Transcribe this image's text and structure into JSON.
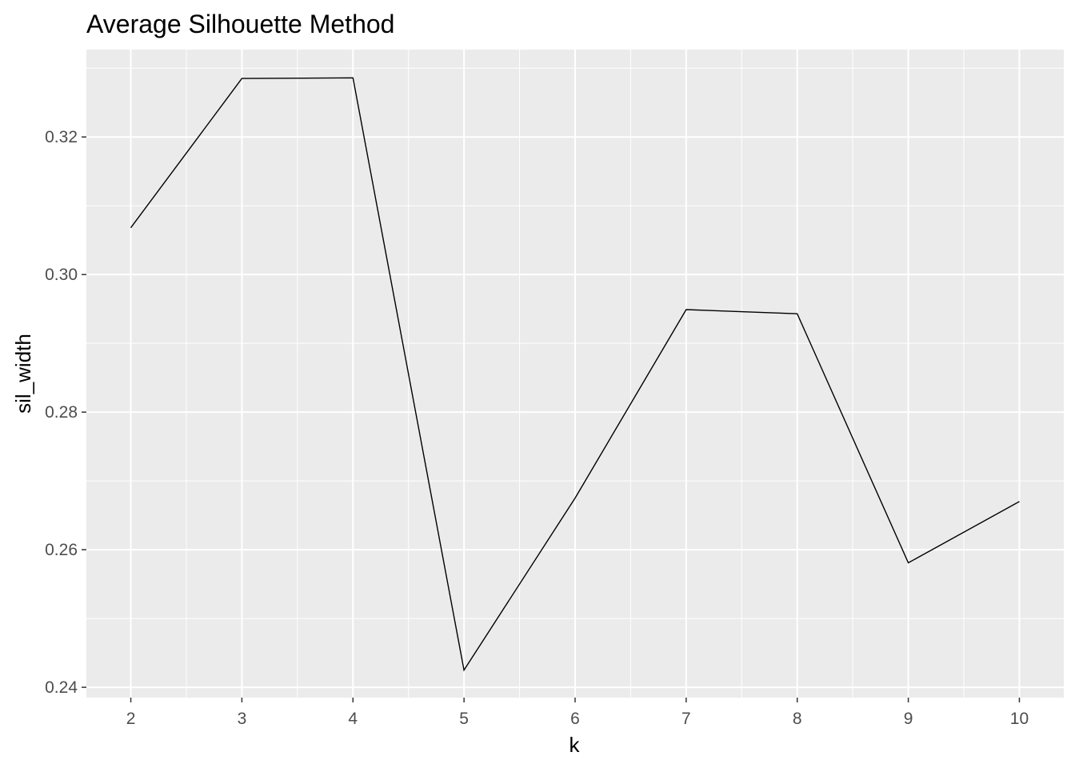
{
  "chart_data": {
    "type": "line",
    "title": "Average Silhouette Method",
    "xlabel": "k",
    "ylabel": "sil_width",
    "x": [
      2,
      3,
      4,
      5,
      6,
      7,
      8,
      9,
      10
    ],
    "series": [
      {
        "values": [
          0.3068,
          0.3285,
          0.3286,
          0.2425,
          0.2675,
          0.2949,
          0.2943,
          0.2581,
          0.267
        ]
      }
    ],
    "xticks": [
      2,
      3,
      4,
      5,
      6,
      7,
      8,
      9,
      10
    ],
    "yticks": [
      0.24,
      0.26,
      0.28,
      0.3,
      0.32
    ],
    "ytick_labels": [
      "0.24",
      "0.26",
      "0.28",
      "0.30",
      "0.32"
    ],
    "xlim": [
      1.6,
      10.4
    ],
    "ylim": [
      0.2385,
      0.3327
    ],
    "grid": true,
    "colors": {
      "panel": "#EBEBEB",
      "grid": "#FFFFFF",
      "line": "#000000",
      "tick_text": "#4D4D4D"
    }
  }
}
